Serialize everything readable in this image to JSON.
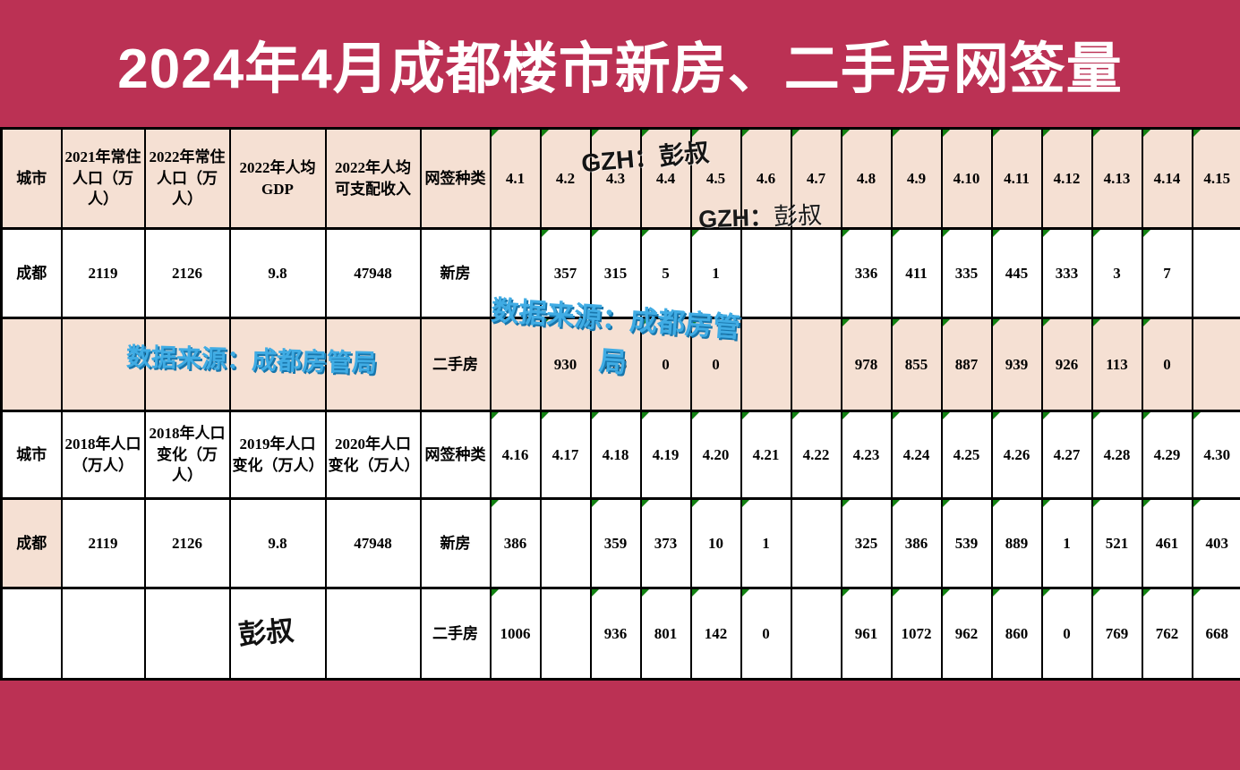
{
  "title": "2024年4月成都楼市新房、二手房网签量",
  "colors": {
    "background_crimson": "#bb3154",
    "cell_peach": "#f5e0d3",
    "cell_white": "#ffffff",
    "border_black": "#000000",
    "comment_triangle_green": "#128212",
    "watermark_blue": "#40ace4",
    "title_text": "#ffffff"
  },
  "watermarks": {
    "gzh_top": "GZH：彭叔",
    "gzh_mid_prefix": "GZH：",
    "gzh_mid_name": "彭叔",
    "source_left": "数据来源：成都房管局",
    "source_right_line1": "数据来源：成都房管",
    "source_right_line2": "局",
    "author": "彭叔"
  },
  "chart_data": {
    "type": "table",
    "title": "2024年4月成都楼市新房、二手房网签量",
    "sections": [
      {
        "info_headers": [
          "城市",
          "2021年常住人口（万人）",
          "2022年常住人口（万人）",
          "2022年人均GDP",
          "2022年人均可支配收入",
          "网签种类"
        ],
        "date_headers": [
          "4.1",
          "4.2",
          "4.3",
          "4.4",
          "4.5",
          "4.6",
          "4.7",
          "4.8",
          "4.9",
          "4.10",
          "4.11",
          "4.12",
          "4.13",
          "4.14",
          "4.15"
        ],
        "rows": [
          {
            "info": [
              "成都",
              "2119",
              "2126",
              "9.8",
              "47948",
              "新房"
            ],
            "values": [
              "",
              "357",
              "315",
              "5",
              "1",
              "",
              "",
              "336",
              "411",
              "335",
              "445",
              "333",
              "3",
              "7",
              ""
            ]
          },
          {
            "info": [
              "",
              "",
              "",
              "",
              "",
              "二手房"
            ],
            "values": [
              "",
              "930",
              "825",
              "0",
              "0",
              "",
              "",
              "978",
              "855",
              "887",
              "939",
              "926",
              "113",
              "0",
              ""
            ]
          }
        ]
      },
      {
        "info_headers": [
          "城市",
          "2018年人口（万人）",
          "2018年人口变化（万人）",
          "2019年人口变化（万人）",
          "2020年人口变化（万人）",
          "网签种类"
        ],
        "date_headers": [
          "4.16",
          "4.17",
          "4.18",
          "4.19",
          "4.20",
          "4.21",
          "4.22",
          "4.23",
          "4.24",
          "4.25",
          "4.26",
          "4.27",
          "4.28",
          "4.29",
          "4.30"
        ],
        "rows": [
          {
            "info": [
              "成都",
              "2119",
              "2126",
              "9.8",
              "47948",
              "新房"
            ],
            "values": [
              "386",
              "",
              "359",
              "373",
              "10",
              "1",
              "",
              "325",
              "386",
              "539",
              "889",
              "1",
              "521",
              "461",
              "403"
            ]
          },
          {
            "info": [
              "",
              "",
              "",
              "",
              "",
              "二手房"
            ],
            "values": [
              "1006",
              "",
              "936",
              "801",
              "142",
              "0",
              "",
              "961",
              "1072",
              "962",
              "860",
              "0",
              "769",
              "762",
              "668"
            ]
          }
        ]
      }
    ]
  }
}
